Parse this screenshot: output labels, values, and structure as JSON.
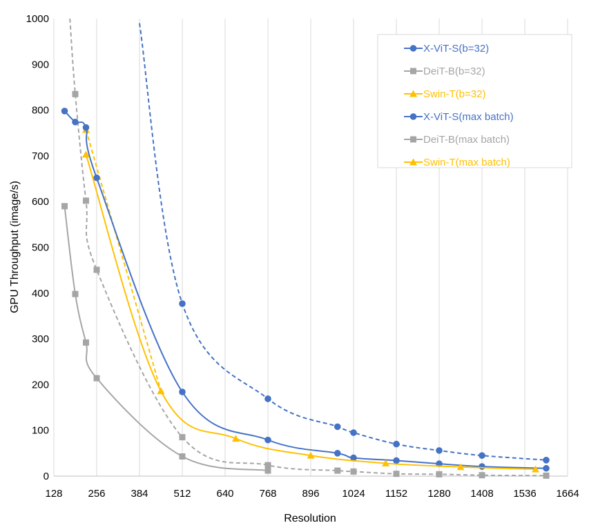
{
  "chart_data": {
    "type": "line",
    "title": "",
    "xlabel": "Resolution",
    "ylabel": "GPU Throughput (image/s)",
    "xlim": [
      128,
      1664
    ],
    "ylim": [
      0,
      1000
    ],
    "xticks": [
      128,
      256,
      384,
      512,
      640,
      768,
      896,
      1024,
      1152,
      1280,
      1408,
      1536,
      1664
    ],
    "yticks": [
      0,
      100,
      200,
      300,
      400,
      500,
      600,
      700,
      800,
      900,
      1000
    ],
    "grid": "vertical",
    "legend_position": "top-right",
    "series": [
      {
        "name": "X-ViT-S(b=32)",
        "color": "#4472C4",
        "marker": "circle",
        "dash": false,
        "x": [
          160,
          192,
          224,
          256,
          512,
          768,
          976,
          1024,
          1152,
          1280,
          1408,
          1600
        ],
        "y": [
          798,
          774,
          762,
          652,
          184,
          79,
          50,
          40,
          34,
          27,
          21,
          17
        ]
      },
      {
        "name": "DeiT-B(b=32)",
        "color": "#A5A5A5",
        "marker": "square",
        "dash": false,
        "x": [
          160,
          192,
          224,
          256,
          512,
          768
        ],
        "y": [
          590,
          398,
          292,
          214,
          43,
          12
        ]
      },
      {
        "name": "Swin-T(b=32)",
        "color": "#FFC000",
        "marker": "triangle",
        "dash": false,
        "x": [
          224,
          448,
          672,
          896,
          1120,
          1344,
          1568
        ],
        "y": [
          703,
          186,
          82,
          45,
          28,
          20,
          15
        ]
      },
      {
        "name": "X-ViT-S(max batch)",
        "color": "#4472C4",
        "marker": "circle",
        "dash": true,
        "x": [
          384,
          512,
          768,
          976,
          1024,
          1152,
          1280,
          1408,
          1600
        ],
        "y": [
          990,
          377,
          169,
          108,
          95,
          70,
          56,
          45,
          35
        ],
        "marker_skip_first": true
      },
      {
        "name": "DeiT-B(max batch)",
        "color": "#A5A5A5",
        "marker": "square",
        "dash": true,
        "x": [
          176,
          192,
          224,
          256,
          512,
          768,
          976,
          1024,
          1152,
          1280,
          1408,
          1600
        ],
        "y": [
          1000,
          835,
          602,
          451,
          85,
          24,
          12,
          10,
          5,
          4,
          2,
          1
        ],
        "marker_skip_first": true
      },
      {
        "name": "Swin-T(max batch)",
        "color": "#FFC000",
        "marker": "triangle",
        "dash": true,
        "x": [
          224,
          448
        ],
        "y": [
          757,
          186
        ]
      }
    ]
  }
}
